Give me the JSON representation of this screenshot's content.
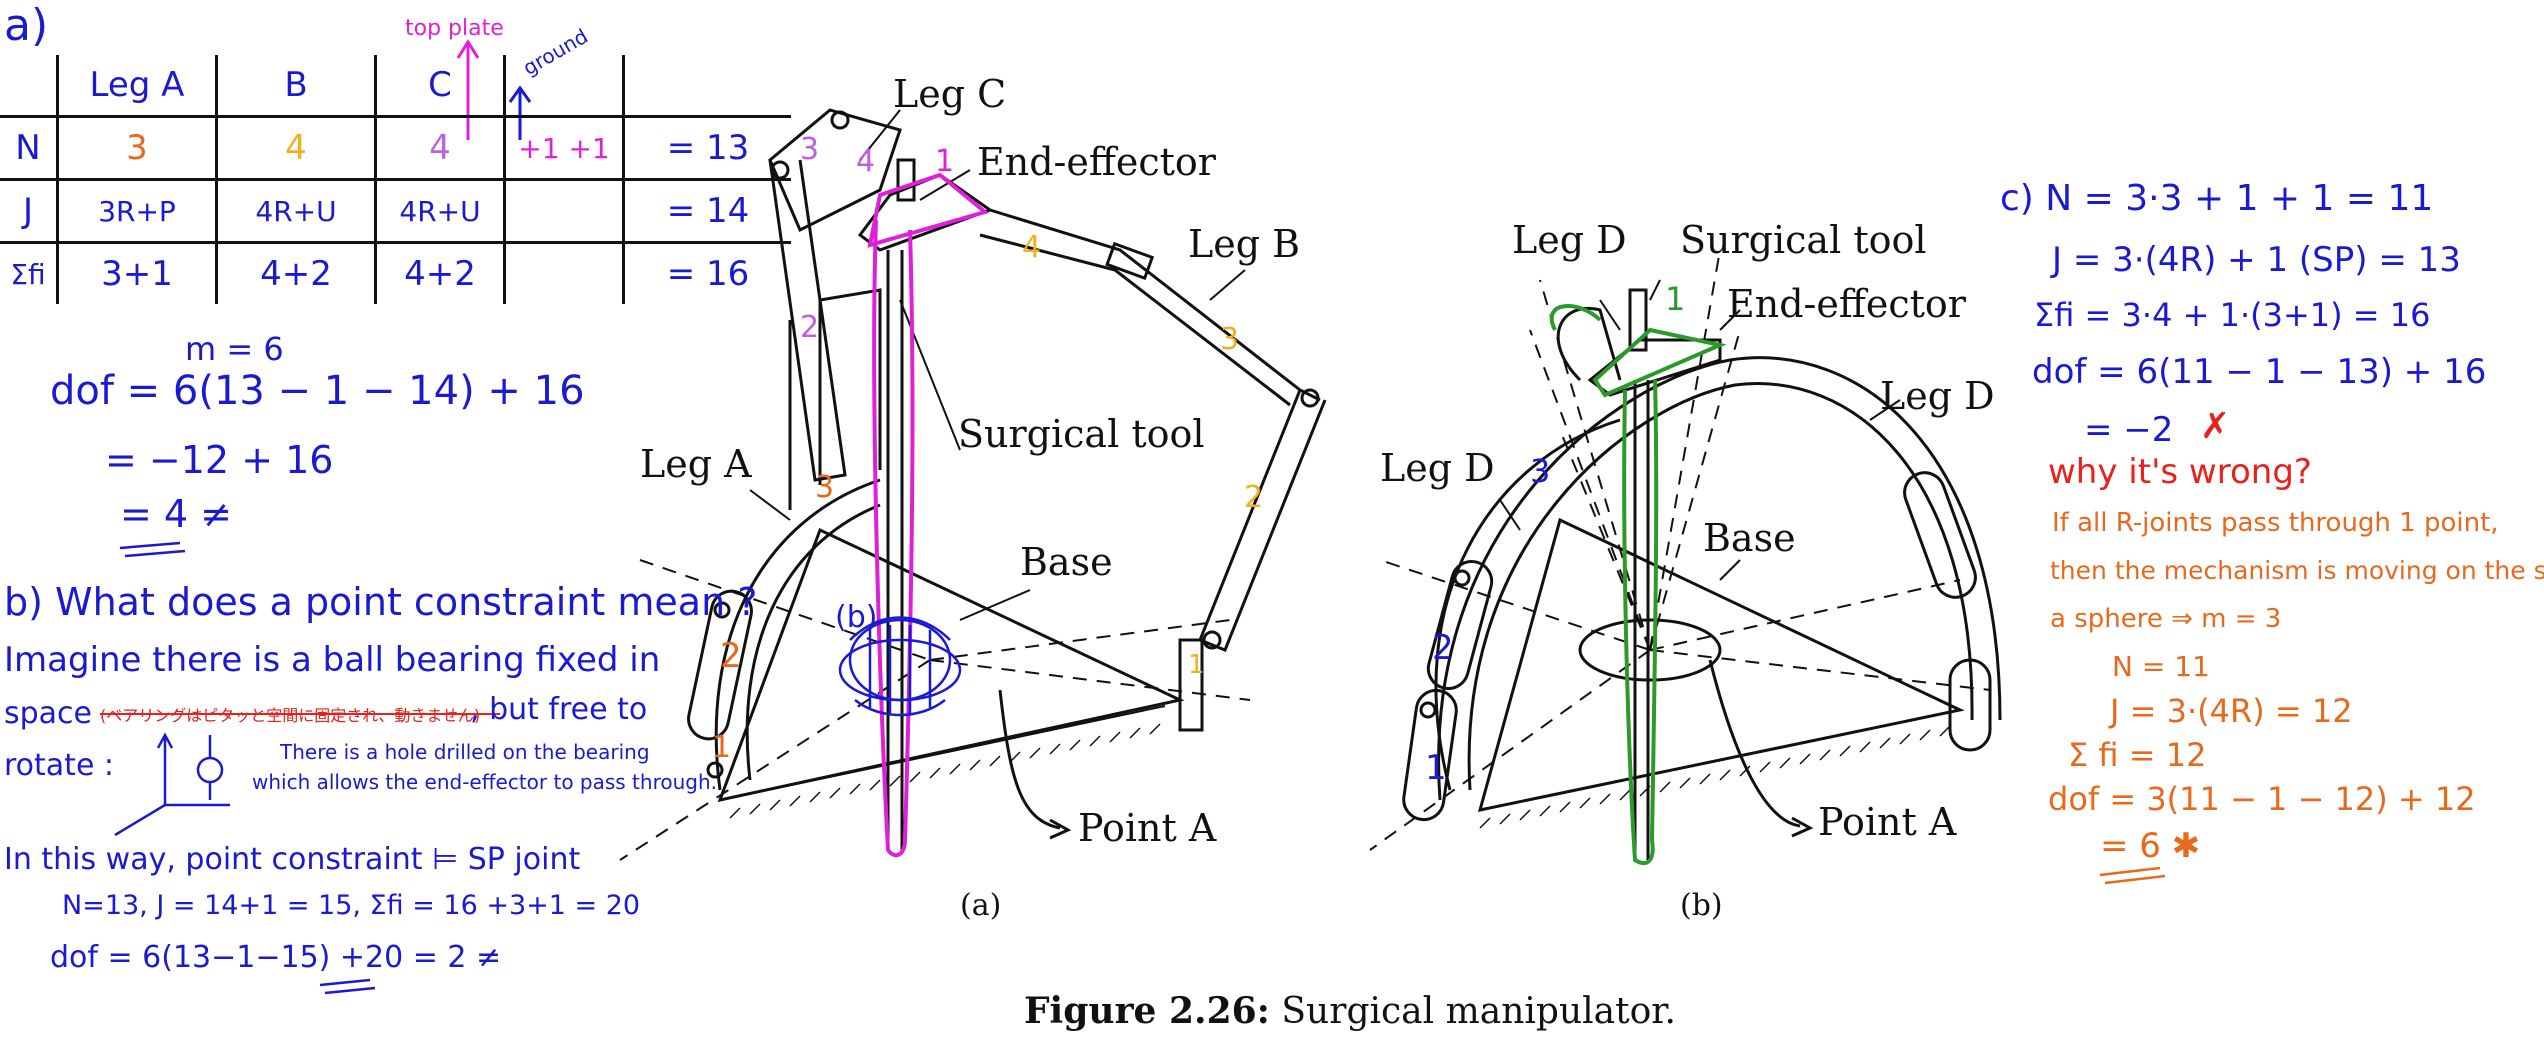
{
  "part_a_label": "a)",
  "table": {
    "headers": [
      "",
      "Leg A",
      "B",
      "C",
      "",
      ""
    ],
    "rows": [
      {
        "label": "N",
        "a": "3",
        "b": "4",
        "c": "4",
        "extra": "+1 +1",
        "total": "= 13"
      },
      {
        "label": "J",
        "a": "3R+P",
        "b": "4R+U",
        "c": "4R+U",
        "extra": "",
        "total": "= 14"
      },
      {
        "label": "Σfi",
        "a": "3+1",
        "b": "4+2",
        "c": "4+2",
        "extra": "",
        "total": "= 16"
      }
    ],
    "top_plate_note": "top plate",
    "ground_note": "ground"
  },
  "left_notes": {
    "m": "m = 6",
    "dof1": "dof = 6(13 − 1 − 14) + 16",
    "dof2": "= −12 + 16",
    "dof3": "= 4 ≠",
    "b_question": "b) What does a point constraint mean ?",
    "b1": "Imagine there is a ball bearing fixed in",
    "b2_struck": "(ベアリングはピタッと空間に固定され、動きません)",
    "b2_start": "space",
    "b2_end": ", but free to",
    "b3": "rotate :",
    "hole_note1": "There is a hole drilled on the bearing",
    "hole_note2": "which allows the end-effector to pass through.",
    "w1": "In this way, point constraint ⊨ SP joint",
    "w2": "N=13,  J = 14+1 = 15,  Σfi = 16 +3+1 = 20",
    "w3": "dof = 6(13−1−15) +20 = 2 ≠"
  },
  "fig_a": {
    "leg_c": "Leg C",
    "end_effector": "End-effector",
    "leg_b": "Leg B",
    "surgical_tool": "Surgical tool",
    "leg_a": "Leg A",
    "base": "Base",
    "point_a": "Point A",
    "b_mark": "(b)",
    "caption": "(a)",
    "nums": {
      "c3": "3",
      "c4": "4",
      "c1": "1",
      "b4": "4",
      "b3": "3",
      "b2": "2",
      "b1": "1",
      "a3": "3",
      "a2": "2",
      "a1": "1",
      "c2": "2"
    }
  },
  "fig_b": {
    "leg_d_top": "Leg D",
    "surgical_tool": "Surgical tool",
    "end_effector": "End-effector",
    "leg_d_right": "Leg D",
    "leg_d_left": "Leg D",
    "base": "Base",
    "point_a": "Point A",
    "caption": "(b)",
    "nums": {
      "n1": "1",
      "n3": "3",
      "n2": "2",
      "nlow": "1"
    }
  },
  "right_notes": {
    "c1": "c) N = 3·3 + 1 + 1 = 11",
    "c2": "J = 3·(4R) + 1 (SP) = 13",
    "c3": "Σfi = 3·4 + 1·(3+1) = 16",
    "c4": "dof = 6(11 − 1 − 13) + 16",
    "c5": "= −2",
    "c5x": "✗",
    "why": "why it's wrong?",
    "o1": "If all R-joints pass through 1 point,",
    "o2": "then the mechanism is moving on the surface of",
    "o3": "a sphere ⇒ m = 3",
    "o4": "N = 11",
    "o5": "J = 3·(4R) = 12",
    "o6": "Σ fi = 12",
    "o7": "dof = 3(11 − 1 − 12) + 12",
    "o8": "= 6 ✱"
  },
  "caption": {
    "bold": "Figure 2.26:",
    "text": " Surgical manipulator."
  },
  "colors": {
    "blue": "#1a1ad0",
    "orange": "#e8691c",
    "magenta": "#e020d8",
    "green": "#2a9a2a",
    "red": "#e8211c",
    "yellow": "#f0b020"
  }
}
